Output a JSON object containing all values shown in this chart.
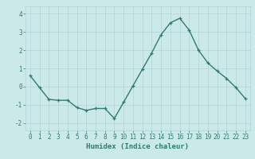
{
  "x": [
    0,
    1,
    2,
    3,
    4,
    5,
    6,
    7,
    8,
    9,
    10,
    11,
    12,
    13,
    14,
    15,
    16,
    17,
    18,
    19,
    20,
    21,
    22,
    23
  ],
  "y": [
    0.6,
    -0.05,
    -0.7,
    -0.75,
    -0.75,
    -1.15,
    -1.3,
    -1.2,
    -1.2,
    -1.75,
    -0.85,
    0.05,
    0.95,
    1.85,
    2.85,
    3.5,
    3.75,
    3.1,
    2.0,
    1.3,
    0.85,
    0.45,
    -0.05,
    -0.65
  ],
  "line_color": "#2e7d6e",
  "marker": "+",
  "marker_size": 3,
  "linewidth": 1.0,
  "xlabel": "Humidex (Indice chaleur)",
  "xlim": [
    -0.5,
    23.5
  ],
  "ylim": [
    -2.4,
    4.4
  ],
  "yticks": [
    -2,
    -1,
    0,
    1,
    2,
    3,
    4
  ],
  "xticks": [
    0,
    1,
    2,
    3,
    4,
    5,
    6,
    7,
    8,
    9,
    10,
    11,
    12,
    13,
    14,
    15,
    16,
    17,
    18,
    19,
    20,
    21,
    22,
    23
  ],
  "background_color": "#cce9e9",
  "grid_color": "#afd4d4",
  "xlabel_fontsize": 6.5,
  "tick_fontsize": 5.5
}
